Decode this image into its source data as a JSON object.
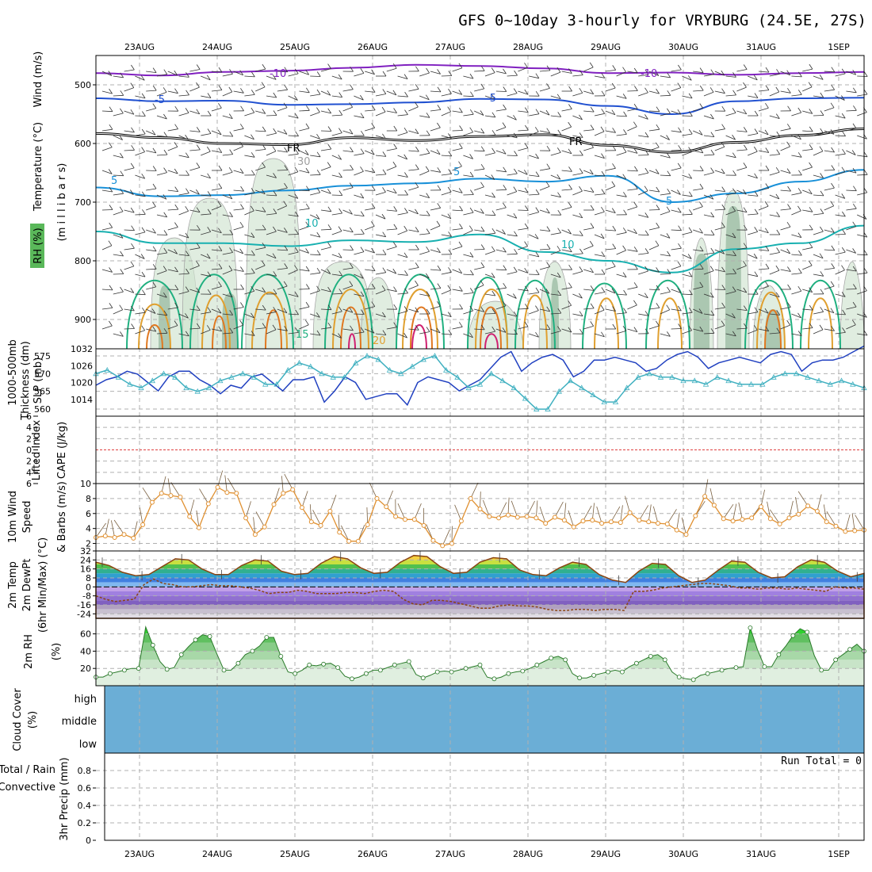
{
  "title": "GFS 0~10day 3-hourly for VRYBURG (24.5E, 27S)",
  "run_total": "Run Total = 0",
  "date_labels": [
    "23AUG",
    "24AUG",
    "25AUG",
    "26AUG",
    "27AUG",
    "28AUG",
    "29AUG",
    "30AUG",
    "31AUG",
    "1SEP"
  ],
  "panel_labels": {
    "upper": [
      {
        "text": "Wind (m/s)",
        "color": "#000000"
      },
      {
        "text": "Temperature (°C)",
        "color": "#d04040"
      },
      {
        "text": "(m i l l i b a r s)",
        "color": "#000000"
      },
      {
        "text": "RH (%)",
        "color": "#000000"
      }
    ],
    "slp": [
      {
        "text": "1000-500mb",
        "color": "#40b0c0"
      },
      {
        "text": "Thickness (dm)",
        "color": "#40b0c0"
      },
      {
        "text": "SLP (mb)",
        "color": "#2040c0"
      }
    ],
    "cape": [
      {
        "text": "Lifted Index",
        "color": "#d04040"
      },
      {
        "text": "CAPE (J/kg)",
        "color": "#c060c0"
      }
    ],
    "wind10": [
      {
        "text": "10m Wind",
        "color": "#e09030"
      },
      {
        "text": "Speed",
        "color": "#e09030"
      },
      {
        "text": "& Barbs (m/s)",
        "color": "#000000"
      }
    ],
    "temp2m": [
      {
        "text": "2m Temp",
        "color": "#8b4513"
      },
      {
        "text": "2m DewPt",
        "color": "#8b4513"
      },
      {
        "text": "(6hr Min/Max) (°C)",
        "color": "#000000"
      }
    ],
    "rh2m": [
      {
        "text": "2m RH",
        "color": "#30b030"
      },
      {
        "text": "(%)",
        "color": "#000000"
      }
    ],
    "cloud": [
      {
        "text": "Cloud Cover",
        "color": "#60a8d0"
      },
      {
        "text": "(%)",
        "color": "#000000"
      },
      {
        "text": "high",
        "color": "#000000"
      },
      {
        "text": "middle",
        "color": "#000000"
      },
      {
        "text": "low",
        "color": "#000000"
      }
    ],
    "precip": [
      {
        "text": "Total / Rain",
        "color": "#30b030"
      },
      {
        "text": "Convective",
        "color": "#d04040"
      },
      {
        "text": "3hr Precip (mm)",
        "color": "#000000"
      }
    ]
  },
  "contour_labels": [
    {
      "text": "-10",
      "color": "#8020c0"
    },
    {
      "text": "-10",
      "color": "#8020c0"
    },
    {
      "text": "-5",
      "color": "#2050d0"
    },
    {
      "text": "-5",
      "color": "#2050d0"
    },
    {
      "text": "FR",
      "color": "#000000"
    },
    {
      "text": "FR",
      "color": "#000000"
    },
    {
      "text": "5",
      "color": "#1890d8"
    },
    {
      "text": "5",
      "color": "#1890d8"
    },
    {
      "text": "5",
      "color": "#1890d8"
    },
    {
      "text": "10",
      "color": "#18b0b0"
    },
    {
      "text": "10",
      "color": "#18b0b0"
    },
    {
      "text": "15",
      "color": "#20b080"
    },
    {
      "text": "20",
      "color": "#e0a030"
    },
    {
      "text": "30",
      "color": "#a0a0a0"
    }
  ],
  "chart_data": [
    {
      "type": "contour",
      "panel": "upper-air",
      "y_axis_ticks": [
        500,
        600,
        700,
        800,
        900
      ],
      "ylim": [
        450,
        950
      ],
      "isotherm_levels": [
        {
          "level": -10,
          "pressure": [
            480,
            484,
            478,
            476,
            471,
            466,
            468,
            472,
            480,
            479,
            483,
            480,
            478
          ]
        },
        {
          "level": -5,
          "pressure": [
            523,
            528,
            527,
            534,
            533,
            530,
            524,
            525,
            536,
            550,
            528,
            523,
            522
          ]
        },
        {
          "level": 0,
          "pressure": [
            583,
            590,
            600,
            602,
            590,
            595,
            588,
            585,
            603,
            615,
            598,
            586,
            575
          ]
        },
        {
          "level": 5,
          "pressure": [
            675,
            690,
            688,
            680,
            672,
            668,
            660,
            665,
            655,
            700,
            685,
            665,
            645
          ]
        },
        {
          "level": 10,
          "pressure": [
            750,
            770,
            770,
            775,
            765,
            768,
            755,
            785,
            800,
            820,
            780,
            770,
            740
          ]
        }
      ],
      "dates": [
        "23AUG",
        "24AUG",
        "25AUG",
        "26AUG",
        "27AUG",
        "28AUG",
        "29AUG",
        "30AUG",
        "31AUG",
        "1SEP"
      ]
    },
    {
      "type": "line",
      "panel": "slp-thickness",
      "ylabel_left": "1000-500mb Thickness (dm)",
      "ylabel_right": "SLP (mb)",
      "left_ticks": [
        560,
        565,
        570,
        575
      ],
      "right_ticks": [
        1014,
        1020,
        1026,
        1032
      ],
      "ylim_left": [
        558,
        577
      ],
      "ylim_right": [
        1008,
        1032
      ],
      "series": [
        {
          "name": "SLP (mb)",
          "color": "#2040c0",
          "axis": "right",
          "values": [
            1019,
            1021,
            1022,
            1024,
            1023,
            1020,
            1017,
            1022,
            1024,
            1024,
            1021,
            1019,
            1016,
            1019,
            1018,
            1022,
            1023,
            1020,
            1017,
            1021,
            1021,
            1022,
            1013,
            1017,
            1022,
            1020,
            1014,
            1015,
            1016,
            1016,
            1012,
            1020,
            1022,
            1021,
            1020,
            1017,
            1019,
            1021,
            1025,
            1029,
            1031,
            1024,
            1027,
            1029,
            1030,
            1028,
            1022,
            1024,
            1028,
            1028,
            1029,
            1028,
            1027,
            1024,
            1025,
            1028,
            1030,
            1031,
            1029,
            1025,
            1027,
            1028,
            1029,
            1028,
            1027,
            1030,
            1031,
            1030,
            1024,
            1027,
            1028,
            1028,
            1029,
            1031,
            1033
          ]
        },
        {
          "name": "1000-500mb Thickness (dm)",
          "color": "#40b0c0",
          "axis": "left",
          "values": [
            570,
            571,
            569,
            567,
            566,
            568,
            570,
            569,
            566,
            565,
            566,
            568,
            569,
            570,
            569,
            567,
            567,
            571,
            573,
            572,
            570,
            569,
            569,
            573,
            575,
            574,
            571,
            570,
            572,
            574,
            575,
            571,
            569,
            566,
            567,
            570,
            568,
            566,
            563,
            560,
            560,
            565,
            568,
            566,
            564,
            562,
            562,
            566,
            569,
            570,
            569,
            569,
            568,
            568,
            567,
            569,
            568,
            567,
            567,
            567,
            569,
            570,
            570,
            569,
            568,
            567,
            568,
            567,
            566
          ]
        }
      ]
    },
    {
      "type": "line",
      "panel": "cape-lifted-index",
      "ylabel": "Lifted Index / CAPE (J/kg)",
      "y_ticks": [
        -6,
        -4,
        -2,
        0,
        2,
        4,
        6
      ],
      "y_tick_labels": [
        "6",
        "4",
        "2",
        "0",
        "2",
        "4",
        "6"
      ],
      "ylim": [
        -6,
        6
      ],
      "series": [
        {
          "name": "Lifted Index zero line",
          "color": "#e04040",
          "values": [
            0,
            0
          ]
        }
      ]
    },
    {
      "type": "line",
      "panel": "10m-wind",
      "ylabel": "10m Wind Speed (m/s)",
      "y_ticks": [
        2,
        4,
        6,
        8,
        10
      ],
      "ylim": [
        1,
        10
      ],
      "series": [
        {
          "name": "10m Wind Speed",
          "color": "#e09030",
          "values": [
            2.8,
            3,
            2.8,
            3.2,
            2.7,
            4.5,
            7.5,
            8.7,
            8.4,
            8.2,
            5.6,
            4.1,
            7.3,
            9.5,
            8.8,
            8.7,
            5.4,
            3.2,
            4.2,
            7.2,
            8.7,
            9.2,
            6.8,
            4.9,
            4.4,
            6.3,
            3.5,
            2.3,
            2.3,
            4.5,
            8,
            6.9,
            5.6,
            5.2,
            5.2,
            4.4,
            2.4,
            1.7,
            2,
            5,
            8,
            6.6,
            5.6,
            5.4,
            5.8,
            5.5,
            5.6,
            5.4,
            4.7,
            5.5,
            5.1,
            4.2,
            5,
            5.1,
            4.7,
            4.9,
            4.8,
            6.1,
            5.1,
            4.9,
            4.7,
            4.6,
            3.8,
            3.2,
            5.7,
            8.3,
            7.1,
            5.3,
            5,
            5.2,
            5.4,
            6.9,
            5.3,
            4.6,
            5.4,
            5.9,
            7,
            6.3,
            4.9,
            4.3,
            3.6,
            3.7,
            3.8
          ]
        }
      ]
    },
    {
      "type": "line",
      "panel": "2m-temp",
      "ylabel": "2m Temp / 2m DewPt (°C)",
      "y_ticks": [
        -24,
        -16,
        -8,
        0,
        8,
        16,
        24,
        32
      ],
      "ylim": [
        -28,
        32
      ],
      "series": [
        {
          "name": "2m Temp",
          "color": "#8b4513",
          "values": [
            22,
            19,
            13,
            10,
            11,
            18,
            25,
            24,
            16,
            11,
            11,
            19,
            24,
            23,
            14,
            11,
            12,
            21,
            27,
            25,
            17,
            12,
            13,
            22,
            28,
            27,
            18,
            12,
            13,
            22,
            26,
            25,
            15,
            11,
            10,
            17,
            22,
            20,
            11,
            6,
            4,
            14,
            21,
            20,
            10,
            4,
            6,
            15,
            23,
            22,
            13,
            8,
            9,
            18,
            24,
            22,
            14,
            9,
            12
          ]
        },
        {
          "name": "2m DewPt",
          "color": "#8b4513",
          "values": [
            -8,
            -11,
            -13,
            -12,
            -11,
            2,
            7,
            3,
            2,
            0,
            0,
            1,
            2,
            1,
            1,
            0,
            -1,
            -3,
            -6,
            -5,
            -5,
            -3,
            -4,
            -6,
            -6,
            -6,
            -5,
            -5,
            -6,
            -4,
            -3,
            -4,
            -11,
            -15,
            -16,
            -12,
            -12,
            -13,
            -15,
            -17,
            -19,
            -19,
            -17,
            -16,
            -17,
            -17,
            -18,
            -20,
            -21,
            -21,
            -20,
            -20,
            -21,
            -20,
            -20,
            -21,
            -4,
            -4,
            -3,
            -1,
            0,
            1,
            2,
            3,
            3,
            2,
            1,
            -1,
            -1,
            -2,
            -1,
            -1,
            -2,
            -1,
            -2,
            -3,
            -4,
            0,
            -1,
            -1,
            -2
          ]
        }
      ]
    },
    {
      "type": "area",
      "panel": "2m-rh",
      "ylabel": "2m RH (%)",
      "y_ticks": [
        20,
        40,
        60
      ],
      "ylim": [
        0,
        78
      ],
      "series": [
        {
          "name": "2m RH",
          "color": "#30b030",
          "values": [
            10,
            10,
            14,
            16,
            18,
            20,
            20,
            68,
            47,
            28,
            19,
            21,
            36,
            45,
            53,
            59,
            57,
            37,
            18,
            18,
            26,
            36,
            40,
            46,
            56,
            56,
            34,
            16,
            14,
            18,
            24,
            23,
            25,
            26,
            21,
            11,
            8,
            10,
            14,
            18,
            18,
            21,
            24,
            26,
            28,
            13,
            9,
            12,
            16,
            17,
            16,
            18,
            20,
            22,
            24,
            10,
            8,
            10,
            14,
            16,
            17,
            20,
            24,
            28,
            32,
            34,
            30,
            14,
            9,
            9,
            12,
            14,
            16,
            18,
            16,
            22,
            26,
            30,
            34,
            36,
            30,
            16,
            10,
            8,
            7,
            12,
            14,
            16,
            18,
            20,
            21,
            22,
            67,
            42,
            22,
            22,
            36,
            46,
            58,
            66,
            62,
            35,
            18,
            18,
            30,
            36,
            42,
            48,
            40
          ]
        }
      ]
    },
    {
      "type": "area",
      "panel": "cloud-cover",
      "ylabel": "Cloud Cover (%)",
      "categories": [
        "high",
        "middle",
        "low"
      ],
      "series": [
        {
          "name": "Cloud Cover",
          "color": "#6baed6",
          "values": [
            100,
            100,
            100
          ]
        }
      ]
    },
    {
      "type": "bar",
      "panel": "3hr-precip",
      "ylabel": "3hr Precip (mm)",
      "y_ticks": [
        0,
        0.2,
        0.4,
        0.6,
        0.8
      ],
      "y_tick_labels": [
        "0",
        "0.2",
        "0.4",
        "0.6",
        "0.8"
      ],
      "ylim": [
        0,
        1
      ],
      "series": [
        {
          "name": "Total / Rain",
          "color": "#30b030",
          "values": []
        },
        {
          "name": "Convective",
          "color": "#d04040",
          "values": []
        }
      ]
    }
  ]
}
